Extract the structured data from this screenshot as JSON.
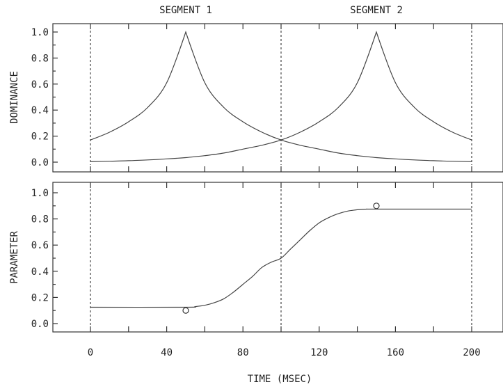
{
  "chart_data": [
    {
      "id": "dominance",
      "type": "line",
      "ylabel": "DOMINANCE",
      "xlim": [
        -20,
        200
      ],
      "ylim": [
        0,
        1.0
      ],
      "yticks": [
        "0.0",
        "0.2",
        "0.4",
        "0.6",
        "0.8",
        "1.0"
      ],
      "segment_labels": [
        {
          "label": "SEGMENT 1",
          "x": 50
        },
        {
          "label": "SEGMENT 2",
          "x": 150
        }
      ],
      "segment_boundaries": [
        0,
        100,
        200
      ],
      "series": [
        {
          "x": [
            0,
            10,
            20,
            30,
            40,
            50,
            60,
            70,
            80,
            90,
            100,
            110,
            120,
            130,
            140,
            150,
            160,
            170,
            180,
            190,
            200
          ],
          "y": [
            0.17,
            0.23,
            0.31,
            0.42,
            0.61,
            1.0,
            0.61,
            0.42,
            0.31,
            0.23,
            0.17,
            0.13,
            0.1,
            0.07,
            0.05,
            0.035,
            0.025,
            0.017,
            0.011,
            0.007,
            0.004
          ]
        },
        {
          "x": [
            0,
            10,
            20,
            30,
            40,
            50,
            60,
            70,
            80,
            90,
            100,
            110,
            120,
            130,
            140,
            150,
            160,
            170,
            180,
            190,
            200
          ],
          "y": [
            0.004,
            0.007,
            0.011,
            0.017,
            0.025,
            0.035,
            0.05,
            0.07,
            0.1,
            0.13,
            0.17,
            0.23,
            0.31,
            0.42,
            0.61,
            1.0,
            0.61,
            0.42,
            0.31,
            0.23,
            0.17
          ]
        }
      ]
    },
    {
      "id": "parameter",
      "type": "line",
      "ylabel": "PARAMETER",
      "xlabel": "TIME (MSEC)",
      "xlim": [
        -20,
        200
      ],
      "ylim": [
        0,
        1.0
      ],
      "xticks": [
        "0",
        "40",
        "80",
        "120",
        "160",
        "200"
      ],
      "yticks": [
        "0.0",
        "0.2",
        "0.4",
        "0.6",
        "0.8",
        "1.0"
      ],
      "segment_boundaries": [
        0,
        100,
        200
      ],
      "series": [
        {
          "x": [
            0,
            50,
            55,
            60,
            65,
            70,
            75,
            80,
            85,
            90,
            95,
            100,
            105,
            110,
            115,
            120,
            125,
            130,
            135,
            140,
            145,
            150,
            200
          ],
          "y": [
            0.125,
            0.125,
            0.13,
            0.14,
            0.16,
            0.19,
            0.24,
            0.3,
            0.36,
            0.43,
            0.47,
            0.5,
            0.57,
            0.64,
            0.71,
            0.77,
            0.81,
            0.84,
            0.86,
            0.87,
            0.875,
            0.875,
            0.875
          ]
        }
      ],
      "targets": [
        {
          "x": 50,
          "y": 0.1
        },
        {
          "x": 150,
          "y": 0.9
        }
      ]
    }
  ]
}
